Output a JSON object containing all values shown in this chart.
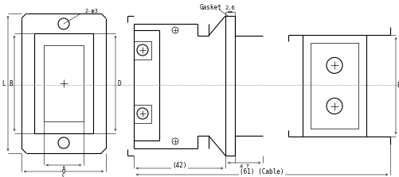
{
  "fig_width": 5.01,
  "fig_height": 2.23,
  "dpi": 100,
  "bg_color": "#ffffff",
  "line_color": "#000000",
  "annotations": {
    "hole_label": "2-φ3",
    "gasket": "Gasket",
    "dim_26": "2.6",
    "dim_47": "4.7",
    "dim_42": "(42)",
    "dim_61": "(61) (Cable)",
    "label_L": "L",
    "label_B": "B",
    "label_D": "D",
    "label_A": "A",
    "label_C": "C",
    "label_E": "E"
  }
}
